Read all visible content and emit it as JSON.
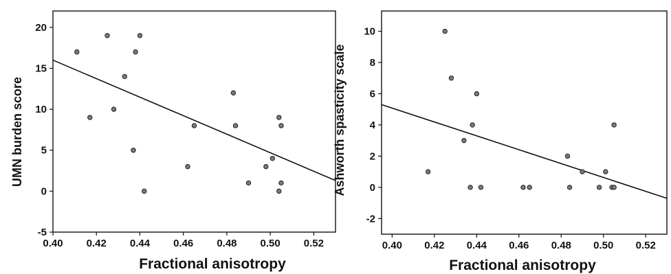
{
  "chart_data": [
    {
      "type": "scatter",
      "title": "",
      "xlabel": "Fractional anisotropy",
      "ylabel": "UMN burden score",
      "xlim": [
        0.4,
        0.53
      ],
      "ylim": [
        -5,
        22
      ],
      "xticks": [
        "0.40",
        "0.42",
        "0.44",
        "0.46",
        "0.48",
        "0.50",
        "0.52"
      ],
      "yticks": [
        "-5",
        "0",
        "5",
        "10",
        "15",
        "20"
      ],
      "grid": false,
      "points": [
        {
          "x": 0.411,
          "y": 17
        },
        {
          "x": 0.417,
          "y": 9
        },
        {
          "x": 0.425,
          "y": 19
        },
        {
          "x": 0.428,
          "y": 10
        },
        {
          "x": 0.433,
          "y": 14
        },
        {
          "x": 0.437,
          "y": 5
        },
        {
          "x": 0.438,
          "y": 17
        },
        {
          "x": 0.44,
          "y": 19
        },
        {
          "x": 0.442,
          "y": 0
        },
        {
          "x": 0.462,
          "y": 3
        },
        {
          "x": 0.465,
          "y": 8
        },
        {
          "x": 0.483,
          "y": 12
        },
        {
          "x": 0.484,
          "y": 8
        },
        {
          "x": 0.49,
          "y": 1
        },
        {
          "x": 0.498,
          "y": 3
        },
        {
          "x": 0.501,
          "y": 4
        },
        {
          "x": 0.504,
          "y": 9
        },
        {
          "x": 0.504,
          "y": 0
        },
        {
          "x": 0.505,
          "y": 8
        },
        {
          "x": 0.505,
          "y": 1
        }
      ],
      "fit_line": {
        "x": [
          0.4,
          0.53
        ],
        "y": [
          16.0,
          1.3
        ]
      }
    },
    {
      "type": "scatter",
      "title": "",
      "xlabel": "Fractional anisotropy",
      "ylabel": "Ashworth spasticity scale",
      "xlim": [
        0.395,
        0.53
      ],
      "ylim": [
        -3,
        11.3
      ],
      "xticks": [
        "0.40",
        "0.42",
        "0.44",
        "0.46",
        "0.48",
        "0.50",
        "0.52"
      ],
      "yticks": [
        "-2",
        "0",
        "2",
        "4",
        "6",
        "8",
        "10"
      ],
      "grid": false,
      "points": [
        {
          "x": 0.417,
          "y": 1
        },
        {
          "x": 0.425,
          "y": 10
        },
        {
          "x": 0.428,
          "y": 7
        },
        {
          "x": 0.434,
          "y": 3
        },
        {
          "x": 0.437,
          "y": 0
        },
        {
          "x": 0.438,
          "y": 4
        },
        {
          "x": 0.44,
          "y": 6
        },
        {
          "x": 0.442,
          "y": 0
        },
        {
          "x": 0.462,
          "y": 0
        },
        {
          "x": 0.465,
          "y": 0
        },
        {
          "x": 0.483,
          "y": 2
        },
        {
          "x": 0.484,
          "y": 0
        },
        {
          "x": 0.49,
          "y": 1
        },
        {
          "x": 0.498,
          "y": 0
        },
        {
          "x": 0.501,
          "y": 1
        },
        {
          "x": 0.504,
          "y": 0
        },
        {
          "x": 0.505,
          "y": 0
        },
        {
          "x": 0.505,
          "y": 4
        }
      ],
      "fit_line": {
        "x": [
          0.395,
          0.53
        ],
        "y": [
          5.3,
          -0.7
        ]
      }
    }
  ]
}
